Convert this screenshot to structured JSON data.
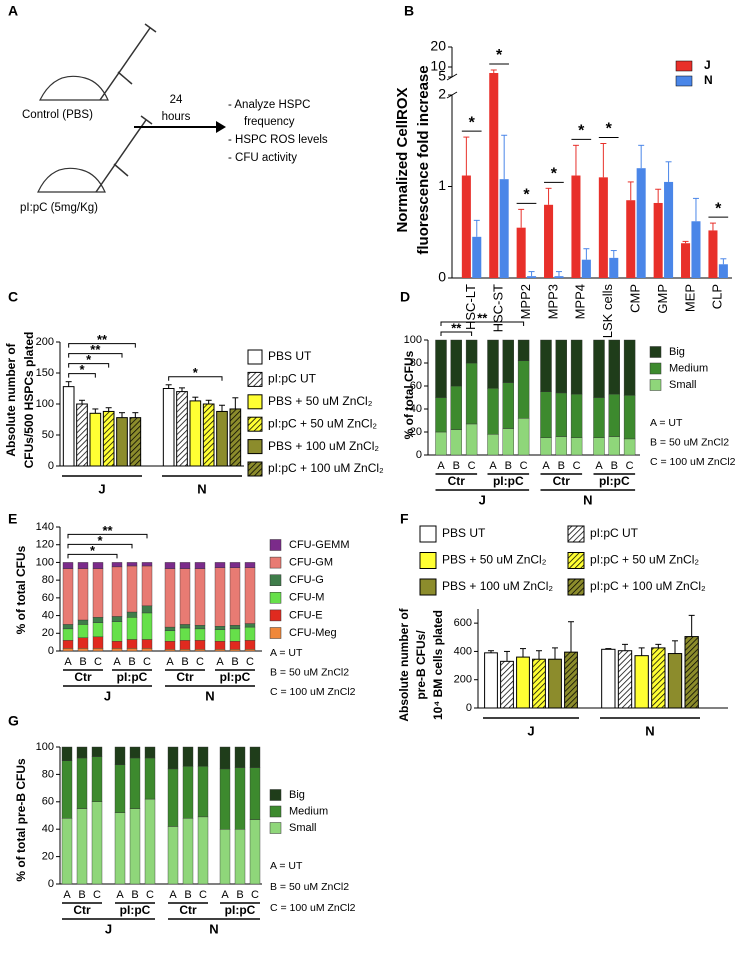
{
  "diagram": {
    "panel_label": "A",
    "conditions": [
      "Control (PBS)",
      "pI:pC (5mg/Kg)"
    ],
    "time": [
      "24",
      "hours"
    ],
    "outputs": [
      "-   Analyze HSPC",
      "frequency",
      "-   HSPC ROS levels",
      "-   CFU activity"
    ]
  },
  "chart_data": [
    {
      "type": "bar",
      "panel_label": "B",
      "ylabel": [
        "Normalized CellROX",
        "fluorescence fold increase"
      ],
      "categories": [
        "HSC-LT",
        "HSC-ST",
        "MPP2",
        "MPP3",
        "MPP4",
        "LSK cells",
        "CMP",
        "GMP",
        "MEP",
        "CLP"
      ],
      "series": [
        {
          "name": "J",
          "color": "#e8302a",
          "values": [
            1.12,
            7,
            0.55,
            0.8,
            1.12,
            1.1,
            0.85,
            0.82,
            0.38,
            0.52
          ],
          "errors": [
            0.42,
            1.5,
            0.2,
            0.18,
            0.33,
            0.37,
            0.2,
            0.15,
            0.02,
            0.08
          ]
        },
        {
          "name": "N",
          "color": "#4a86e8",
          "values": [
            0.45,
            1.08,
            0.02,
            0.02,
            0.2,
            0.22,
            1.2,
            1.05,
            0.62,
            0.15
          ],
          "errors": [
            0.18,
            0.48,
            0.05,
            0.05,
            0.12,
            0.08,
            0.25,
            0.22,
            0.25,
            0.06
          ]
        }
      ],
      "significance": [
        "*",
        "*",
        "*",
        "*",
        "*",
        "*",
        null,
        null,
        null,
        "*"
      ],
      "ylim": [
        0,
        20
      ],
      "yticks": [
        0,
        1,
        2,
        5,
        10,
        20
      ],
      "axis_break": [
        2,
        5
      ],
      "legend": "upper right"
    },
    {
      "type": "grouped_bar",
      "panel_label": "C",
      "ylabel": [
        "Absolute number of",
        "CFUs/500 HSPCs plated"
      ],
      "groups": [
        "J",
        "N"
      ],
      "series": [
        {
          "name": "PBS UT",
          "color": "#ffffff",
          "hatch": false,
          "values": [
            128,
            125
          ],
          "errors": [
            8,
            6
          ]
        },
        {
          "name": "pI:pC UT",
          "color": "#ffffff",
          "hatch": true,
          "values": [
            100,
            120
          ],
          "errors": [
            6,
            6
          ]
        },
        {
          "name": "PBS + 50 uM ZnCl₂",
          "color": "#ffff33",
          "hatch": false,
          "values": [
            85,
            105
          ],
          "errors": [
            7,
            6
          ]
        },
        {
          "name": "pI:pC + 50 uM ZnCl₂",
          "color": "#ffff33",
          "hatch": true,
          "values": [
            88,
            100
          ],
          "errors": [
            6,
            6
          ]
        },
        {
          "name": "PBS + 100 uM ZnCl₂",
          "color": "#8c8c2c",
          "hatch": false,
          "values": [
            78,
            88
          ],
          "errors": [
            8,
            10
          ]
        },
        {
          "name": "pI:pC + 100 uM ZnCl₂",
          "color": "#8c8c2c",
          "hatch": true,
          "values": [
            78,
            92
          ],
          "errors": [
            8,
            18
          ]
        }
      ],
      "brackets": [
        {
          "group": 0,
          "from": 0,
          "to": 5,
          "label": "**"
        },
        {
          "group": 0,
          "from": 0,
          "to": 4,
          "label": "**"
        },
        {
          "group": 0,
          "from": 0,
          "to": 3,
          "label": "*"
        },
        {
          "group": 0,
          "from": 0,
          "to": 2,
          "label": "*"
        },
        {
          "group": 1,
          "from": 0,
          "to": 4,
          "label": "*"
        }
      ],
      "ylim": [
        0,
        200
      ],
      "yticks": [
        0,
        50,
        100,
        150,
        200
      ]
    },
    {
      "type": "stacked_bar",
      "panel_label": "D",
      "ylabel": [
        "% of total CFUs"
      ],
      "categories": [
        "A",
        "B",
        "C",
        "A",
        "B",
        "C",
        "A",
        "B",
        "C",
        "A",
        "B",
        "C"
      ],
      "subgroups": [
        "Ctr",
        "pI:pC",
        "Ctr",
        "pI:pC"
      ],
      "groups": [
        "J",
        "N"
      ],
      "series": [
        {
          "name": "Big",
          "color": "#1f3d1a",
          "values": [
            50,
            40,
            20,
            42,
            37,
            18,
            45,
            46,
            47,
            50,
            47,
            48
          ]
        },
        {
          "name": "Medium",
          "color": "#3d8a2e",
          "values": [
            30,
            38,
            53,
            40,
            40,
            50,
            40,
            38,
            38,
            35,
            37,
            38
          ]
        },
        {
          "name": "Small",
          "color": "#8fd67a",
          "values": [
            20,
            22,
            27,
            18,
            23,
            32,
            15,
            16,
            15,
            15,
            16,
            14
          ]
        }
      ],
      "brackets": [
        {
          "from": 0,
          "to": 2,
          "label": "**"
        },
        {
          "from": 0,
          "to": 5,
          "label": "**"
        }
      ],
      "notes": [
        "A = UT",
        "B = 50 uM ZnCl2",
        "C = 100 uM ZnCl2"
      ],
      "ylim": [
        0,
        100
      ],
      "yticks": [
        0,
        20,
        40,
        60,
        80,
        100
      ]
    },
    {
      "type": "stacked_bar",
      "panel_label": "E",
      "ylabel": [
        "% of total CFUs"
      ],
      "categories": [
        "A",
        "B",
        "C",
        "A",
        "B",
        "C",
        "A",
        "B",
        "C",
        "A",
        "B",
        "C"
      ],
      "subgroups": [
        "Ctr",
        "pI:pC",
        "Ctr",
        "pI:pC"
      ],
      "groups": [
        "J",
        "N"
      ],
      "series": [
        {
          "name": "CFU-GEMM",
          "color": "#7b2b8a",
          "values": [
            7,
            7,
            7,
            5,
            4,
            4,
            7,
            7,
            7,
            6,
            6,
            6
          ]
        },
        {
          "name": "CFU-GM",
          "color": "#e87b73",
          "values": [
            63,
            58,
            55,
            56,
            52,
            45,
            66,
            63,
            64,
            66,
            65,
            63
          ]
        },
        {
          "name": "CFU-G",
          "color": "#3f7d4a",
          "values": [
            5,
            5,
            6,
            6,
            6,
            8,
            4,
            4,
            4,
            4,
            4,
            4
          ]
        },
        {
          "name": "CFU-M",
          "color": "#66e04a",
          "values": [
            13,
            15,
            16,
            22,
            25,
            30,
            12,
            14,
            13,
            13,
            14,
            15
          ]
        },
        {
          "name": "CFU-E",
          "color": "#e02a1f",
          "values": [
            9,
            12,
            13,
            8,
            10,
            10,
            9,
            10,
            10,
            9,
            9,
            10
          ]
        },
        {
          "name": "CFU-Meg",
          "color": "#f0883a",
          "values": [
            3,
            3,
            3,
            3,
            3,
            3,
            2,
            2,
            2,
            2,
            2,
            2
          ]
        }
      ],
      "brackets": [
        {
          "from": 0,
          "to": 5,
          "label": "**"
        },
        {
          "from": 0,
          "to": 4,
          "label": "*"
        },
        {
          "from": 0,
          "to": 3,
          "label": "*"
        }
      ],
      "notes": [
        "A = UT",
        "B = 50 uM ZnCl2",
        "C = 100 uM ZnCl2"
      ],
      "ylim": [
        0,
        140
      ],
      "yticks": [
        0,
        20,
        40,
        60,
        80,
        100,
        120,
        140
      ]
    },
    {
      "type": "grouped_bar",
      "panel_label": "F",
      "ylabel": [
        "Absolute number of",
        "pre-B CFUs/",
        "10⁴ BM cells plated"
      ],
      "groups": [
        "J",
        "N"
      ],
      "series": [
        {
          "name": "PBS UT",
          "color": "#ffffff",
          "hatch": false,
          "values": [
            390,
            415
          ],
          "errors": [
            15,
            5
          ]
        },
        {
          "name": "pI:pC UT",
          "color": "#ffffff",
          "hatch": true,
          "values": [
            330,
            405
          ],
          "errors": [
            70,
            45
          ]
        },
        {
          "name": "PBS + 50 uM ZnCl₂",
          "color": "#ffff33",
          "hatch": false,
          "values": [
            360,
            370
          ],
          "errors": [
            60,
            55
          ]
        },
        {
          "name": "pI:pC + 50 uM ZnCl₂",
          "color": "#ffff33",
          "hatch": true,
          "values": [
            345,
            425
          ],
          "errors": [
            60,
            25
          ]
        },
        {
          "name": "PBS + 100 uM ZnCl₂",
          "color": "#8c8c2c",
          "hatch": false,
          "values": [
            345,
            385
          ],
          "errors": [
            80,
            90
          ]
        },
        {
          "name": "pI:pC + 100 uM ZnCl₂",
          "color": "#8c8c2c",
          "hatch": true,
          "values": [
            395,
            505
          ],
          "errors": [
            215,
            150
          ]
        }
      ],
      "ylim": [
        0,
        700
      ],
      "yticks": [
        0,
        200,
        400,
        600
      ]
    },
    {
      "type": "stacked_bar",
      "panel_label": "G",
      "ylabel": [
        "% of total pre-B CFUs"
      ],
      "categories": [
        "A",
        "B",
        "C",
        "A",
        "B",
        "C",
        "A",
        "B",
        "C",
        "A",
        "B",
        "C"
      ],
      "subgroups": [
        "Ctr",
        "pI:pC",
        "Ctr",
        "pI:pC"
      ],
      "groups": [
        "J",
        "N"
      ],
      "series": [
        {
          "name": "Big",
          "color": "#1f3d1a",
          "values": [
            10,
            8,
            7,
            13,
            8,
            8,
            16,
            14,
            14,
            16,
            15,
            15
          ]
        },
        {
          "name": "Medium",
          "color": "#3d8a2e",
          "values": [
            42,
            37,
            33,
            35,
            37,
            30,
            42,
            38,
            37,
            44,
            45,
            38
          ]
        },
        {
          "name": "Small",
          "color": "#8fd67a",
          "values": [
            48,
            55,
            60,
            52,
            55,
            62,
            42,
            48,
            49,
            40,
            40,
            47
          ]
        }
      ],
      "notes": [
        "A = UT",
        "B = 50 uM ZnCl2",
        "C = 100 uM ZnCl2"
      ],
      "ylim": [
        0,
        100
      ],
      "yticks": [
        0,
        20,
        40,
        60,
        80,
        100
      ]
    }
  ]
}
